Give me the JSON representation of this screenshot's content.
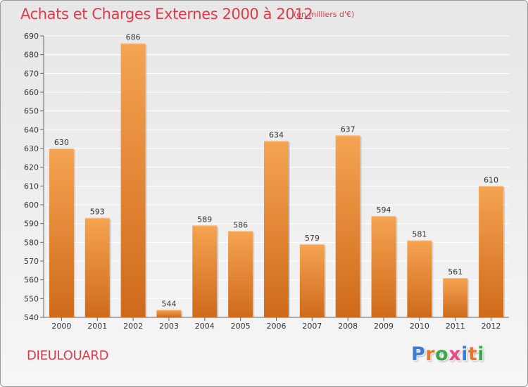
{
  "header": {
    "title": "Achats et Charges Externes 2000 à 2012",
    "subtitle": "(en milliers d'€)"
  },
  "footer": {
    "commune": "DIEULOUARD",
    "logo": {
      "text": "Proxiti",
      "letter_colors": [
        "#3a7fd1",
        "#e8762c",
        "#3aa84a",
        "#e84a8c",
        "#3a7fd1",
        "#e8762c",
        "#3aa84a"
      ]
    }
  },
  "colors": {
    "accent": "#dc3b4a",
    "bar_light": "#f5a451",
    "bar_dark": "#d2691e"
  },
  "chart_data": {
    "type": "bar",
    "title": "Achats et Charges Externes 2000 à 2012",
    "subtitle": "(en milliers d'€)",
    "categories": [
      "2000",
      "2001",
      "2002",
      "2003",
      "2004",
      "2005",
      "2006",
      "2007",
      "2008",
      "2009",
      "2010",
      "2011",
      "2012"
    ],
    "values": [
      630,
      593,
      686,
      544,
      589,
      586,
      634,
      579,
      637,
      594,
      581,
      561,
      610
    ],
    "ylim": [
      540,
      690
    ],
    "yticks": [
      540,
      550,
      560,
      570,
      580,
      590,
      600,
      610,
      620,
      630,
      640,
      650,
      660,
      670,
      680,
      690
    ],
    "xlabel": "",
    "ylabel": "",
    "grid": true,
    "data_labels": true
  }
}
